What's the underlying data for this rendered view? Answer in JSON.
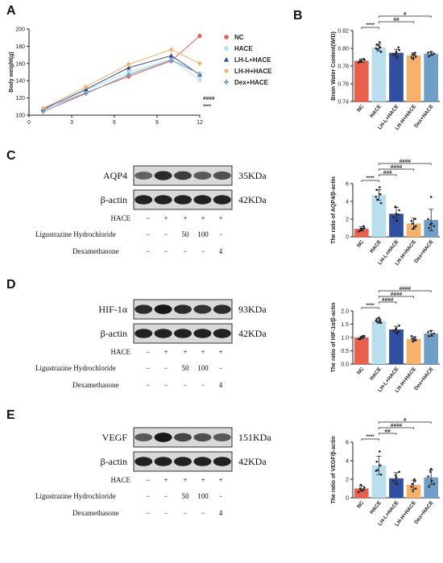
{
  "panels": {
    "A": "A",
    "B": "B",
    "C": "C",
    "D": "D",
    "E": "E"
  },
  "colors": {
    "NC": "#e8604c",
    "HACE": "#b9dfee",
    "LH-L+HACE": "#2f4fa0",
    "LH-H+HACE": "#f6b26b",
    "Dex+HACE": "#6f9fc8"
  },
  "chart_data": [
    {
      "panel": "A",
      "type": "line",
      "title": "",
      "xlabel": "",
      "ylabel": "Body weight(g)",
      "xlim": [
        0,
        12
      ],
      "ylim": [
        100,
        200
      ],
      "xticks": [
        "0",
        "3",
        "6",
        "9",
        "12"
      ],
      "yticks": [
        "100",
        "120",
        "140",
        "160",
        "180",
        "200"
      ],
      "x": [
        1,
        4,
        7,
        10,
        12
      ],
      "series": [
        {
          "name": "NC",
          "marker": "circle",
          "values": [
            106,
            126,
            145,
            163,
            192
          ]
        },
        {
          "name": "HACE",
          "marker": "square",
          "values": [
            105,
            129,
            150,
            165,
            141
          ]
        },
        {
          "name": "LH-L+HACE",
          "marker": "triangle",
          "values": [
            107,
            130,
            155,
            169,
            147
          ]
        },
        {
          "name": "LH-H+HACE",
          "marker": "diamond",
          "values": [
            108,
            133,
            159,
            176,
            160
          ]
        },
        {
          "name": "Dex+HACE",
          "marker": "cross",
          "values": [
            104,
            125,
            147,
            164,
            148
          ]
        }
      ],
      "legend_position": "right",
      "annotations": [
        "####",
        "****"
      ]
    },
    {
      "panel": "B",
      "type": "bar",
      "title": "",
      "ylabel": "Brain Water Content(W/D)",
      "ylim": [
        0.74,
        0.82
      ],
      "yticks": [
        "0.74",
        "0.76",
        "0.78",
        "0.80",
        "0.82"
      ],
      "categories": [
        "NC",
        "HACE",
        "LH-L+HACE",
        "LH-H+HACE",
        "Dex+HACE"
      ],
      "values": [
        0.786,
        0.801,
        0.795,
        0.792,
        0.794
      ],
      "errors": [
        0.002,
        0.004,
        0.004,
        0.003,
        0.002
      ],
      "points": [
        [
          0.784,
          0.786,
          0.787,
          0.785,
          0.788,
          0.786
        ],
        [
          0.796,
          0.799,
          0.801,
          0.804,
          0.807,
          0.8,
          0.803
        ],
        [
          0.789,
          0.793,
          0.796,
          0.798,
          0.794,
          0.801
        ],
        [
          0.788,
          0.791,
          0.793,
          0.795,
          0.79,
          0.793
        ],
        [
          0.791,
          0.793,
          0.795,
          0.796,
          0.794
        ]
      ],
      "significance": [
        {
          "from": 0,
          "to": 1,
          "label": "****"
        },
        {
          "from": 1,
          "to": 3,
          "label": "##"
        },
        {
          "from": 1,
          "to": 4,
          "label": "#"
        }
      ]
    },
    {
      "panel": "C",
      "type": "bar",
      "title": "",
      "ylabel": "The ratio of AQP4/β-actin",
      "ylim": [
        0,
        6
      ],
      "yticks": [
        "0",
        "2",
        "4",
        "6"
      ],
      "categories": [
        "NC",
        "HACE",
        "LH-L+HACE",
        "LH-H+HACE",
        "Dex+HACE"
      ],
      "values": [
        0.9,
        4.7,
        2.6,
        1.5,
        1.9
      ],
      "errors": [
        0.25,
        0.6,
        0.7,
        0.6,
        1.2
      ],
      "points": [
        [
          0.6,
          0.8,
          1.0,
          0.9,
          1.2,
          0.7,
          0.9
        ],
        [
          3.8,
          4.2,
          4.8,
          5.3,
          5.6,
          4.5
        ],
        [
          1.8,
          2.2,
          2.6,
          3.0,
          3.4,
          2.5
        ],
        [
          0.9,
          1.2,
          1.5,
          2.0,
          1.8,
          1.1
        ],
        [
          1.0,
          1.5,
          2.0,
          4.5,
          1.2,
          1.4
        ]
      ],
      "significance": [
        {
          "from": 0,
          "to": 1,
          "label": "****"
        },
        {
          "from": 1,
          "to": 2,
          "label": "###"
        },
        {
          "from": 1,
          "to": 3,
          "label": "####"
        },
        {
          "from": 1,
          "to": 4,
          "label": "####"
        }
      ]
    },
    {
      "panel": "D",
      "type": "bar",
      "title": "",
      "ylabel": "The ratio of HIF-1α/β-actin",
      "ylim": [
        0,
        2.0
      ],
      "yticks": [
        "0.0",
        "0.5",
        "1.0",
        "1.5",
        "2.0"
      ],
      "categories": [
        "NC",
        "HACE",
        "LH-L+HACE",
        "LH-H+HACE",
        "Dex+HACE"
      ],
      "values": [
        1.0,
        1.62,
        1.3,
        0.95,
        1.15
      ],
      "errors": [
        0.05,
        0.08,
        0.12,
        0.08,
        0.1
      ],
      "points": [
        [
          0.95,
          1.0,
          1.05,
          0.98,
          1.02,
          0.93,
          1.06
        ],
        [
          1.55,
          1.6,
          1.65,
          1.7,
          1.58,
          1.63,
          1.75
        ],
        [
          1.15,
          1.25,
          1.35,
          1.45,
          1.3,
          1.22
        ],
        [
          0.85,
          0.9,
          0.95,
          1.0,
          1.05,
          0.92
        ],
        [
          1.05,
          1.1,
          1.2,
          1.25,
          1.15
        ]
      ],
      "significance": [
        {
          "from": 0,
          "to": 1,
          "label": "****"
        },
        {
          "from": 1,
          "to": 2,
          "label": "####"
        },
        {
          "from": 1,
          "to": 3,
          "label": "####"
        },
        {
          "from": 1,
          "to": 4,
          "label": "####"
        }
      ]
    },
    {
      "panel": "E",
      "type": "bar",
      "title": "",
      "ylabel": "The ratio of VEGF/β-actin",
      "ylim": [
        0,
        6
      ],
      "yticks": [
        "0",
        "2",
        "4",
        "6"
      ],
      "categories": [
        "NC",
        "HACE",
        "LH-L+HACE",
        "LH-H+HACE",
        "Dex+HACE"
      ],
      "values": [
        1.0,
        3.5,
        2.1,
        1.4,
        2.2
      ],
      "errors": [
        0.3,
        1.0,
        0.6,
        0.5,
        0.8
      ],
      "points": [
        [
          0.6,
          0.8,
          1.1,
          1.4,
          0.9,
          1.0
        ],
        [
          2.5,
          3.0,
          3.5,
          3.9,
          5.0,
          2.9
        ],
        [
          1.5,
          1.8,
          2.2,
          2.8,
          2.4
        ],
        [
          0.7,
          1.0,
          1.5,
          1.8,
          1.2,
          2.0
        ],
        [
          1.2,
          1.8,
          2.3,
          3.1,
          1.5,
          2.8
        ]
      ],
      "significance": [
        {
          "from": 0,
          "to": 1,
          "label": "****"
        },
        {
          "from": 1,
          "to": 2,
          "label": "##"
        },
        {
          "from": 1,
          "to": 3,
          "label": "####"
        },
        {
          "from": 1,
          "to": 4,
          "label": "#"
        }
      ]
    }
  ],
  "blots": [
    {
      "panel": "C",
      "target": "AQP4",
      "target_kda": "35KDa",
      "loading": "β-actin",
      "loading_kda": "42KDa",
      "target_intensity": [
        0.55,
        0.85,
        0.75,
        0.6,
        0.65
      ],
      "loading_intensity": [
        0.9,
        0.9,
        0.9,
        0.9,
        0.9
      ]
    },
    {
      "panel": "D",
      "target": "HIF-1α",
      "target_kda": "93KDa",
      "loading": "β-actin",
      "loading_kda": "42KDa",
      "target_intensity": [
        0.85,
        0.95,
        0.85,
        0.8,
        0.85
      ],
      "loading_intensity": [
        0.9,
        0.9,
        0.9,
        0.9,
        0.9
      ]
    },
    {
      "panel": "E",
      "target": "VEGF",
      "target_kda": "151KDa",
      "loading": "β-actin",
      "loading_kda": "42KDa",
      "target_intensity": [
        0.6,
        0.95,
        0.7,
        0.65,
        0.6
      ],
      "loading_intensity": [
        0.9,
        0.9,
        0.9,
        0.9,
        0.9
      ]
    }
  ],
  "conditions": {
    "rows": [
      {
        "label": "HACE",
        "values": [
          "−",
          "+",
          "+",
          "+",
          "+"
        ]
      },
      {
        "label": "Ligustrazine Hydrochloride",
        "values": [
          "−",
          "−",
          "50",
          "100",
          "−"
        ]
      },
      {
        "label": "Dexamethasone",
        "values": [
          "−",
          "−",
          "−",
          "−",
          "4"
        ]
      }
    ]
  }
}
